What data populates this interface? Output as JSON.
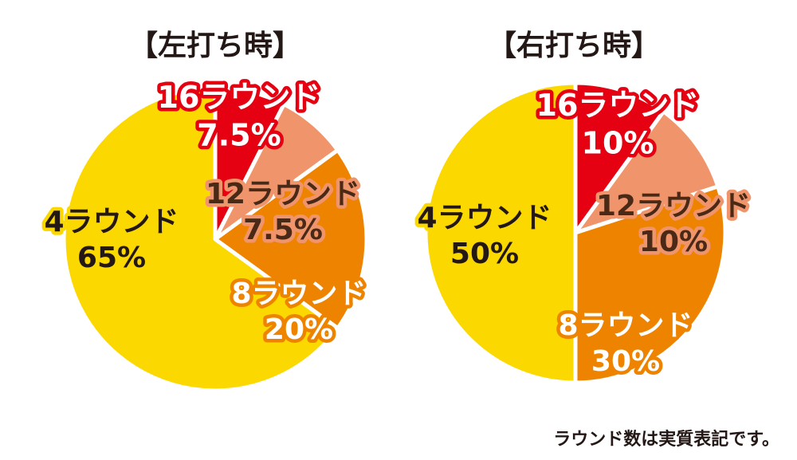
{
  "chart_data": [
    {
      "type": "pie",
      "title": "【左打ち時】",
      "slices": [
        {
          "label": "16ラウンド",
          "value": 7.5,
          "value_label": "7.5%",
          "color": "#e50012"
        },
        {
          "label": "12ラウンド",
          "value": 7.5,
          "value_label": "7.5%",
          "color": "#f0956b"
        },
        {
          "label": "8ラウンド",
          "value": 20,
          "value_label": "20%",
          "color": "#ee8300"
        },
        {
          "label": "4ラウンド",
          "value": 65,
          "value_label": "65%",
          "color": "#fbd800"
        }
      ]
    },
    {
      "type": "pie",
      "title": "【右打ち時】",
      "slices": [
        {
          "label": "16ラウンド",
          "value": 10,
          "value_label": "10%",
          "color": "#e50012"
        },
        {
          "label": "12ラウンド",
          "value": 10,
          "value_label": "10%",
          "color": "#f0956b"
        },
        {
          "label": "8ラウンド",
          "value": 30,
          "value_label": "30%",
          "color": "#ee8300"
        },
        {
          "label": "4ラウンド",
          "value": 50,
          "value_label": "50%",
          "color": "#fbd800"
        }
      ]
    }
  ],
  "footnote": "ラウンド数は実質表記です。"
}
